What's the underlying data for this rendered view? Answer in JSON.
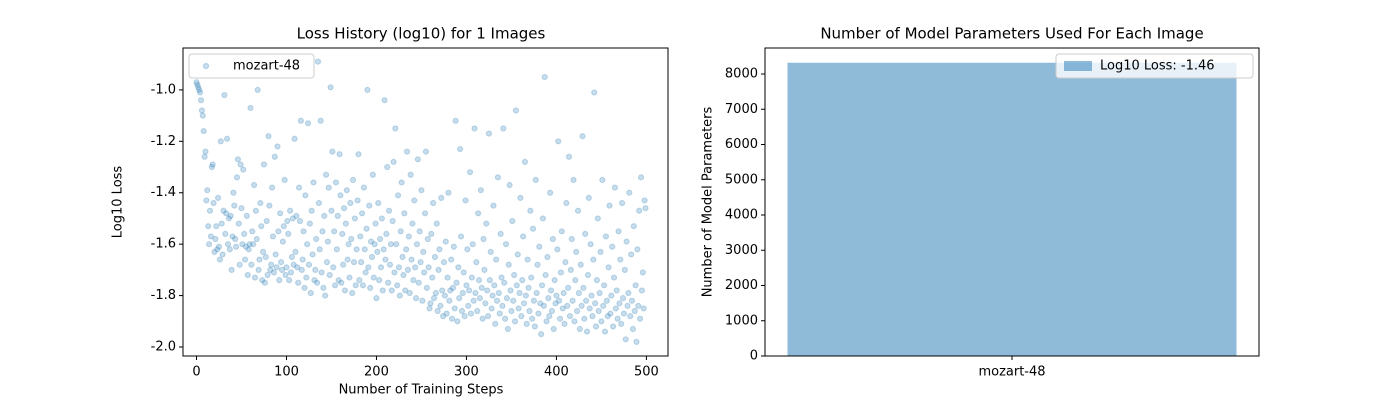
{
  "chart_data": [
    {
      "type": "scatter",
      "title": "Loss History (log10) for 1 Images",
      "xlabel": "Number of Training Steps",
      "ylabel": "Log10 Loss",
      "xlim": [
        -15,
        524
      ],
      "ylim": [
        -2.035,
        -0.837
      ],
      "xticks": [
        0,
        100,
        200,
        300,
        400,
        500
      ],
      "yticks": [
        {
          "value": -2,
          "label": "-2.0"
        },
        -1.8,
        -1.6,
        -1.4,
        -1.2,
        {
          "value": -1,
          "label": "-1.0"
        }
      ],
      "legend": "upper left",
      "x": [
        0,
        1,
        2,
        3,
        4,
        5,
        6,
        7,
        8,
        9,
        10,
        11,
        12,
        13,
        14,
        15,
        16,
        17,
        18,
        19,
        20,
        21,
        22,
        23,
        24,
        25,
        26,
        27,
        28,
        29,
        30,
        31,
        32,
        33,
        34,
        35,
        36,
        37,
        38,
        39,
        40,
        41,
        42,
        43,
        44,
        45,
        46,
        47,
        48,
        49,
        50,
        51,
        52,
        53,
        54,
        55,
        56,
        57,
        58,
        59,
        60,
        61,
        62,
        63,
        64,
        65,
        66,
        67,
        68,
        69,
        70,
        71,
        72,
        73,
        74,
        75,
        76,
        77,
        78,
        79,
        80,
        81,
        82,
        83,
        84,
        85,
        86,
        87,
        88,
        89,
        90,
        91,
        92,
        93,
        94,
        95,
        96,
        97,
        98,
        99,
        100,
        101,
        102,
        103,
        104,
        105,
        106,
        107,
        108,
        109,
        110,
        111,
        112,
        113,
        114,
        115,
        116,
        117,
        118,
        119,
        120,
        121,
        122,
        123,
        124,
        125,
        126,
        127,
        128,
        129,
        130,
        131,
        132,
        133,
        134,
        135,
        136,
        137,
        138,
        139,
        140,
        141,
        142,
        143,
        144,
        145,
        146,
        147,
        148,
        149,
        150,
        151,
        152,
        153,
        154,
        155,
        156,
        157,
        158,
        159,
        160,
        161,
        162,
        163,
        164,
        165,
        166,
        167,
        168,
        169,
        170,
        171,
        172,
        173,
        174,
        175,
        176,
        177,
        178,
        179,
        180,
        181,
        182,
        183,
        184,
        185,
        186,
        187,
        188,
        189,
        190,
        191,
        192,
        193,
        194,
        195,
        196,
        197,
        198,
        199,
        200,
        201,
        202,
        203,
        204,
        205,
        206,
        207,
        208,
        209,
        210,
        211,
        212,
        213,
        214,
        215,
        216,
        217,
        218,
        219,
        220,
        221,
        222,
        223,
        224,
        225,
        226,
        227,
        228,
        229,
        230,
        231,
        232,
        233,
        234,
        235,
        236,
        237,
        238,
        239,
        240,
        241,
        242,
        243,
        244,
        245,
        246,
        247,
        248,
        249,
        250,
        251,
        252,
        253,
        254,
        255,
        256,
        257,
        258,
        259,
        260,
        261,
        262,
        263,
        264,
        265,
        266,
        267,
        268,
        269,
        270,
        271,
        272,
        273,
        274,
        275,
        276,
        277,
        278,
        279,
        280,
        281,
        282,
        283,
        284,
        285,
        286,
        287,
        288,
        289,
        290,
        291,
        292,
        293,
        294,
        295,
        296,
        297,
        298,
        299,
        300,
        301,
        302,
        303,
        304,
        305,
        306,
        307,
        308,
        309,
        310,
        311,
        312,
        313,
        314,
        315,
        316,
        317,
        318,
        319,
        320,
        321,
        322,
        323,
        324,
        325,
        326,
        327,
        328,
        329,
        330,
        331,
        332,
        333,
        334,
        335,
        336,
        337,
        338,
        339,
        340,
        341,
        342,
        343,
        344,
        345,
        346,
        347,
        348,
        349,
        350,
        351,
        352,
        353,
        354,
        355,
        356,
        357,
        358,
        359,
        360,
        361,
        362,
        363,
        364,
        365,
        366,
        367,
        368,
        369,
        370,
        371,
        372,
        373,
        374,
        375,
        376,
        377,
        378,
        379,
        380,
        381,
        382,
        383,
        384,
        385,
        386,
        387,
        388,
        389,
        390,
        391,
        392,
        393,
        394,
        395,
        396,
        397,
        398,
        399,
        400,
        401,
        402,
        403,
        404,
        405,
        406,
        407,
        408,
        409,
        410,
        411,
        412,
        413,
        414,
        415,
        416,
        417,
        418,
        419,
        420,
        421,
        422,
        423,
        424,
        425,
        426,
        427,
        428,
        429,
        430,
        431,
        432,
        433,
        434,
        435,
        436,
        437,
        438,
        439,
        440,
        441,
        442,
        443,
        444,
        445,
        446,
        447,
        448,
        449,
        450,
        451,
        452,
        453,
        454,
        455,
        456,
        457,
        458,
        459,
        460,
        461,
        462,
        463,
        464,
        465,
        466,
        467,
        468,
        469,
        470,
        471,
        472,
        473,
        474,
        475,
        476,
        477,
        478,
        479,
        480,
        481,
        482,
        483,
        484,
        485,
        486,
        487,
        488,
        489,
        490,
        491,
        492,
        493,
        494,
        495,
        496,
        497,
        498,
        499
      ],
      "series": [
        {
          "name": "mozart-48",
          "color": "#1f77b4",
          "alpha": 0.25,
          "values": [
            -0.97,
            -0.98,
            -0.99,
            -1.0,
            -1.01,
            -1.04,
            -1.08,
            -1.1,
            -1.16,
            -1.26,
            -1.24,
            -1.43,
            -1.39,
            -1.53,
            -1.6,
            -1.47,
            -1.57,
            -1.3,
            -1.29,
            -1.44,
            -1.63,
            -1.58,
            -1.53,
            -1.62,
            -1.42,
            -1.61,
            -1.66,
            -1.2,
            -1.52,
            -1.64,
            -1.47,
            -1.02,
            -1.56,
            -1.48,
            -1.19,
            -1.6,
            -1.5,
            -1.62,
            -1.49,
            -1.7,
            -1.57,
            -1.4,
            -1.45,
            -1.58,
            -1.61,
            -1.34,
            -1.27,
            -1.52,
            -1.68,
            -1.29,
            -1.46,
            -1.6,
            -1.31,
            -1.56,
            -1.66,
            -1.61,
            -1.49,
            -1.72,
            -1.62,
            -1.6,
            -1.07,
            -1.68,
            -1.55,
            -1.6,
            -1.37,
            -1.73,
            -1.47,
            -1.58,
            -1.0,
            -1.7,
            -1.66,
            -1.44,
            -1.53,
            -1.74,
            -1.63,
            -1.29,
            -1.75,
            -1.65,
            -1.51,
            -1.72,
            -1.18,
            -1.45,
            -1.7,
            -1.68,
            -1.38,
            -1.57,
            -1.71,
            -1.26,
            -1.64,
            -1.69,
            -1.22,
            -1.55,
            -1.74,
            -1.48,
            -1.67,
            -1.7,
            -1.59,
            -1.53,
            -1.35,
            -1.72,
            -1.69,
            -1.51,
            -1.56,
            -1.74,
            -1.47,
            -1.71,
            -1.65,
            -1.5,
            -1.68,
            -1.19,
            -1.63,
            -1.49,
            -1.69,
            -1.75,
            -1.38,
            -1.51,
            -1.12,
            -1.7,
            -1.66,
            -1.55,
            -1.77,
            -1.41,
            -1.73,
            -1.6,
            -1.13,
            -1.68,
            -1.52,
            -1.79,
            -1.47,
            -1.64,
            -1.36,
            -1.74,
            -1.7,
            -1.58,
            -1.75,
            -0.89,
            -1.44,
            -1.62,
            -1.12,
            -1.71,
            -1.55,
            -1.77,
            -1.49,
            -1.8,
            -1.33,
            -1.67,
            -1.59,
            -1.38,
            -1.72,
            -0.99,
            -1.47,
            -1.24,
            -1.69,
            -1.55,
            -1.76,
            -1.36,
            -1.62,
            -1.49,
            -1.74,
            -1.25,
            -1.41,
            -1.75,
            -1.56,
            -1.68,
            -1.46,
            -1.78,
            -1.52,
            -1.39,
            -1.66,
            -1.6,
            -1.73,
            -1.44,
            -1.58,
            -1.79,
            -1.35,
            -1.67,
            -1.5,
            -1.76,
            -1.62,
            -1.43,
            -1.25,
            -1.74,
            -1.57,
            -1.67,
            -1.48,
            -1.76,
            -1.38,
            -1.62,
            -1.71,
            -1.54,
            -1.0,
            -1.69,
            -1.45,
            -1.77,
            -1.59,
            -1.65,
            -1.33,
            -1.73,
            -1.6,
            -1.52,
            -1.81,
            -1.63,
            -1.44,
            -1.74,
            -1.58,
            -1.69,
            -1.5,
            -1.78,
            -1.62,
            -1.04,
            -1.66,
            -1.56,
            -1.3,
            -1.75,
            -1.47,
            -1.68,
            -1.6,
            -1.78,
            -1.51,
            -1.28,
            -1.71,
            -1.15,
            -1.6,
            -1.76,
            -1.41,
            -1.69,
            -1.8,
            -1.55,
            -1.36,
            -1.65,
            -1.72,
            -1.48,
            -1.78,
            -1.62,
            -1.24,
            -1.7,
            -1.57,
            -1.79,
            -1.33,
            -1.66,
            -1.52,
            -1.74,
            -1.43,
            -1.69,
            -1.81,
            -1.6,
            -1.27,
            -1.75,
            -1.55,
            -1.67,
            -1.39,
            -1.82,
            -1.63,
            -1.71,
            -1.48,
            -1.24,
            -1.77,
            -1.58,
            -1.69,
            -1.85,
            -1.83,
            -1.56,
            -1.73,
            -1.44,
            -1.81,
            -1.65,
            -1.79,
            -1.52,
            -1.86,
            -1.7,
            -1.62,
            -1.84,
            -1.42,
            -1.78,
            -1.88,
            -1.67,
            -1.8,
            -1.59,
            -1.87,
            -1.73,
            -1.4,
            -1.82,
            -1.78,
            -1.66,
            -1.89,
            -1.77,
            -1.61,
            -1.85,
            -1.12,
            -1.75,
            -1.9,
            -1.69,
            -1.81,
            -1.23,
            -1.57,
            -1.86,
            -1.79,
            -1.71,
            -1.88,
            -1.43,
            -1.76,
            -1.62,
            -1.84,
            -1.78,
            -1.32,
            -1.87,
            -1.73,
            -1.6,
            -1.82,
            -1.15,
            -1.79,
            -1.67,
            -1.86,
            -1.48,
            -1.74,
            -1.81,
            -1.39,
            -1.77,
            -1.89,
            -1.58,
            -1.7,
            -1.83,
            -1.52,
            -1.78,
            -1.88,
            -1.17,
            -1.74,
            -1.63,
            -1.85,
            -1.8,
            -1.45,
            -1.76,
            -1.91,
            -1.66,
            -1.82,
            -1.34,
            -1.79,
            -1.87,
            -1.56,
            -1.73,
            -1.84,
            -1.15,
            -1.75,
            -1.89,
            -1.6,
            -1.81,
            -1.93,
            -1.68,
            -1.37,
            -1.78,
            -1.86,
            -1.51,
            -1.82,
            -1.72,
            -1.9,
            -1.08,
            -1.76,
            -1.64,
            -1.85,
            -1.79,
            -1.42,
            -1.88,
            -1.74,
            -1.57,
            -1.83,
            -1.28,
            -1.8,
            -1.91,
            -1.66,
            -1.77,
            -1.86,
            -1.47,
            -1.73,
            -1.89,
            -1.54,
            -1.82,
            -1.92,
            -1.35,
            -1.79,
            -1.68,
            -1.87,
            -1.61,
            -1.83,
            -1.95,
            -1.76,
            -1.5,
            -1.84,
            -0.95,
            -1.72,
            -1.9,
            -1.65,
            -1.81,
            -1.88,
            -1.4,
            -1.78,
            -1.86,
            -1.58,
            -1.93,
            -1.74,
            -1.83,
            -1.8,
            -1.62,
            -1.2,
            -1.82,
            -1.89,
            -1.71,
            -1.55,
            -1.85,
            -1.79,
            -1.91,
            -1.67,
            -1.44,
            -1.84,
            -1.77,
            -1.26,
            -1.88,
            -1.7,
            -1.58,
            -1.82,
            -1.35,
            -1.9,
            -1.74,
            -1.63,
            -1.86,
            -1.47,
            -1.79,
            -1.93,
            -1.68,
            -1.84,
            -1.18,
            -1.77,
            -1.89,
            -1.56,
            -1.82,
            -1.94,
            -1.72,
            -1.42,
            -1.85,
            -1.6,
            -1.8,
            -1.88,
            -1.66,
            -1.01,
            -1.83,
            -1.92,
            -1.74,
            -1.5,
            -1.86,
            -1.79,
            -1.63,
            -1.9,
            -1.35,
            -1.84,
            -1.76,
            -1.94,
            -1.57,
            -1.82,
            -1.88,
            -1.69,
            -1.45,
            -1.87,
            -1.8,
            -1.61,
            -1.92,
            -1.73,
            -1.38,
            -1.85,
            -1.78,
            -1.89,
            -1.55,
            -1.83,
            -1.66,
            -1.91,
            -1.44,
            -1.81,
            -1.87,
            -1.7,
            -1.97,
            -1.59,
            -1.84,
            -1.79,
            -1.4,
            -1.88,
            -1.64,
            -1.82,
            -1.93,
            -1.53,
            -1.86,
            -1.76,
            -1.98,
            -1.62,
            -1.84,
            -1.47,
            -1.89,
            -1.34,
            -1.78,
            -1.71,
            -1.85,
            -1.43,
            -1.46
          ]
        }
      ]
    },
    {
      "type": "bar",
      "title": "Number of Model Parameters Used For Each Image",
      "ylabel": "Number of Model Parameters",
      "categories": [
        "mozart-48"
      ],
      "ylim": [
        0,
        8738
      ],
      "yticks": [
        0,
        1000,
        2000,
        3000,
        4000,
        5000,
        6000,
        7000,
        8000
      ],
      "legend": "upper right",
      "series": [
        {
          "name": "Log10 Loss: -1.46",
          "color": "#1f77b4",
          "alpha": 0.5,
          "values": [
            8320
          ]
        }
      ]
    }
  ]
}
